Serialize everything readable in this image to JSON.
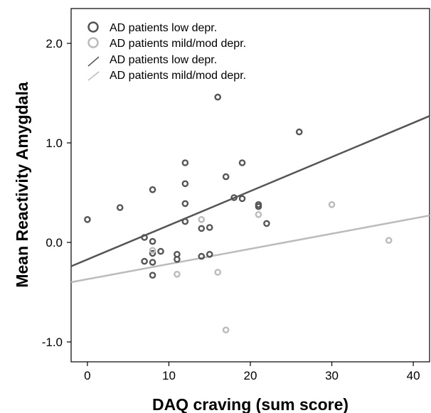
{
  "chart_data": {
    "type": "scatter",
    "xlabel": "DAQ craving (sum score)",
    "ylabel": "Mean Reactivity Amygdala",
    "xlim": [
      -2,
      42
    ],
    "ylim": [
      -1.2,
      2.35
    ],
    "x_ticks": [
      0,
      10,
      20,
      30,
      40
    ],
    "x_tick_labels": [
      "0",
      "10",
      "20",
      "30",
      "40"
    ],
    "y_ticks": [
      -1,
      0,
      1,
      2
    ],
    "y_tick_labels": [
      "-1.0",
      "0.0",
      "1.0",
      "2.0"
    ],
    "grid": false,
    "legend_position": "top-left",
    "series": [
      {
        "name": "AD patients low depr.",
        "color": "#555555",
        "marker": "circle",
        "points": [
          {
            "x": 0,
            "y": 0.23
          },
          {
            "x": 4,
            "y": 0.35
          },
          {
            "x": 7,
            "y": 0.05
          },
          {
            "x": 7,
            "y": -0.19
          },
          {
            "x": 8,
            "y": 0.53
          },
          {
            "x": 8,
            "y": 0.01
          },
          {
            "x": 8,
            "y": -0.11
          },
          {
            "x": 8,
            "y": -0.2
          },
          {
            "x": 8,
            "y": -0.33
          },
          {
            "x": 9,
            "y": -0.09
          },
          {
            "x": 11,
            "y": -0.12
          },
          {
            "x": 11,
            "y": -0.17
          },
          {
            "x": 12,
            "y": 0.8
          },
          {
            "x": 12,
            "y": 0.59
          },
          {
            "x": 12,
            "y": 0.39
          },
          {
            "x": 12,
            "y": 0.21
          },
          {
            "x": 14,
            "y": 0.14
          },
          {
            "x": 14,
            "y": -0.14
          },
          {
            "x": 15,
            "y": 0.15
          },
          {
            "x": 15,
            "y": -0.12
          },
          {
            "x": 16,
            "y": 1.46
          },
          {
            "x": 17,
            "y": 0.66
          },
          {
            "x": 18,
            "y": 0.45
          },
          {
            "x": 19,
            "y": 0.8
          },
          {
            "x": 19,
            "y": 0.44
          },
          {
            "x": 21,
            "y": 0.38
          },
          {
            "x": 21,
            "y": 0.36
          },
          {
            "x": 22,
            "y": 0.19
          },
          {
            "x": 26,
            "y": 1.11
          }
        ]
      },
      {
        "name": "AD patients mild/mod depr.",
        "color": "#bbbbbb",
        "marker": "circle",
        "points": [
          {
            "x": 8,
            "y": -0.08
          },
          {
            "x": 11,
            "y": -0.32
          },
          {
            "x": 14,
            "y": 0.23
          },
          {
            "x": 16,
            "y": -0.3
          },
          {
            "x": 17,
            "y": -0.88
          },
          {
            "x": 21,
            "y": 0.28
          },
          {
            "x": 30,
            "y": 0.38
          },
          {
            "x": 37,
            "y": 0.02
          }
        ]
      }
    ],
    "fit_lines": [
      {
        "name": "AD patients low depr.",
        "color": "#555555",
        "x": [
          -2,
          42
        ],
        "y": [
          -0.24,
          1.27
        ]
      },
      {
        "name": "AD patients mild/mod depr.",
        "color": "#bbbbbb",
        "x": [
          -2,
          42
        ],
        "y": [
          -0.4,
          0.27
        ]
      }
    ]
  }
}
